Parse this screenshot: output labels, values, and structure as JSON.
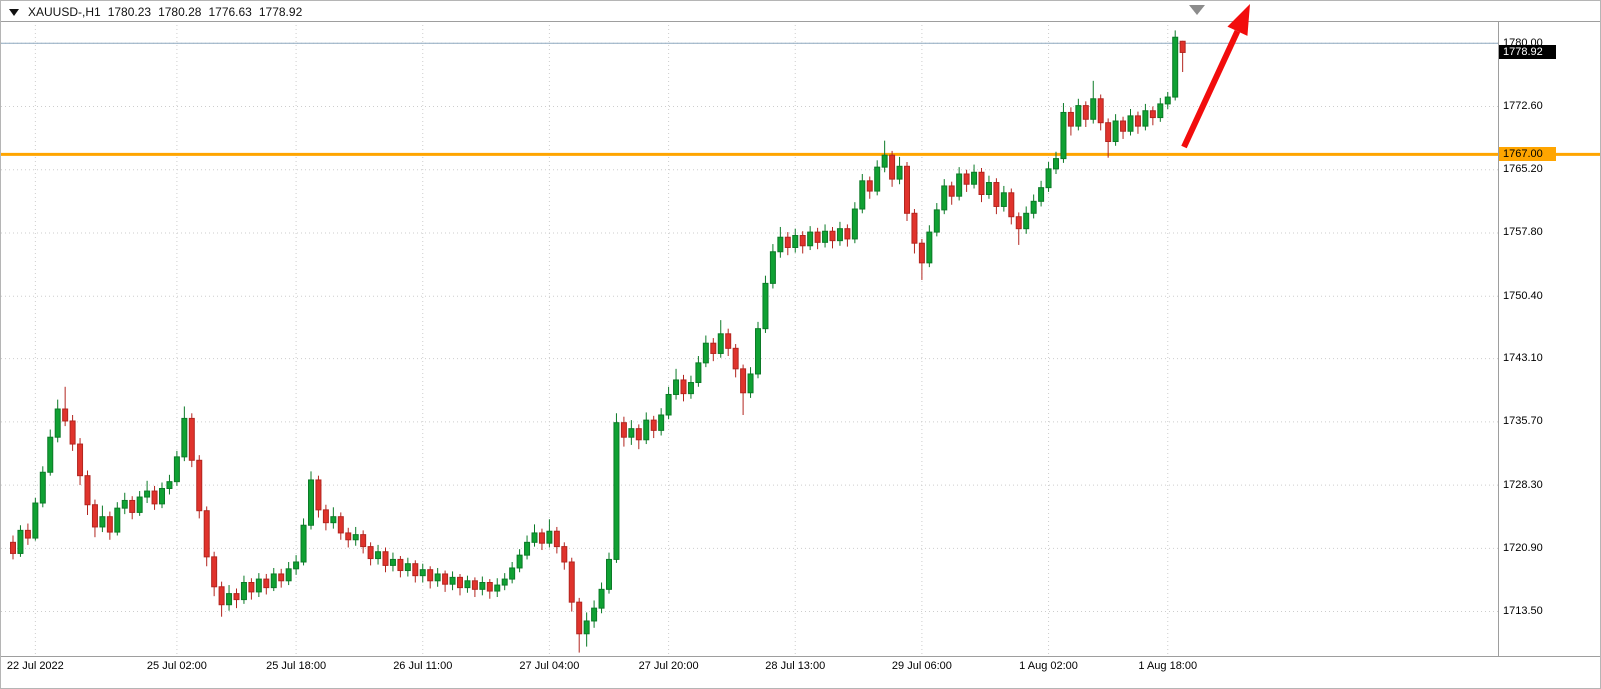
{
  "header": {
    "symbol": "XAUUSD-,H1",
    "open": "1780.23",
    "high": "1780.28",
    "low": "1776.63",
    "close": "1778.92"
  },
  "colors": {
    "candle_up_fill": "#0FA133",
    "candle_up_stroke": "#0B7A27",
    "candle_down_fill": "#E0332C",
    "candle_down_stroke": "#B2251F",
    "grid": "#CDCDCD",
    "frame": "#9E9E9E",
    "level_orange": "#FFA500",
    "level_blue": "#8DA8BF",
    "arrow_red": "#F20C0C",
    "marker_gray": "#8C8C8C"
  },
  "price_axis": {
    "badges": [
      {
        "label": "1778.92",
        "price": 1778.92,
        "bg": "#000000",
        "fg": "#FFFFFF"
      },
      {
        "label": "1767.00",
        "price": 1767.0,
        "bg": "#FFA500",
        "fg": "#000000"
      }
    ]
  },
  "chart_data": {
    "type": "candlestick",
    "symbol": "XAUUSD",
    "timeframe": "H1",
    "ylim": [
      1708.3,
      1782.6
    ],
    "grid": true,
    "y_ticks": [
      {
        "label": "1780.00",
        "value": 1780.0
      },
      {
        "label": "1772.60",
        "value": 1772.6
      },
      {
        "label": "1765.20",
        "value": 1765.2
      },
      {
        "label": "1757.80",
        "value": 1757.8
      },
      {
        "label": "1750.40",
        "value": 1750.4
      },
      {
        "label": "1743.10",
        "value": 1743.1
      },
      {
        "label": "1735.70",
        "value": 1735.7
      },
      {
        "label": "1728.30",
        "value": 1728.3
      },
      {
        "label": "1720.90",
        "value": 1720.9
      },
      {
        "label": "1713.50",
        "value": 1713.5
      }
    ],
    "x_labels": [
      {
        "index": 3,
        "text": "22 Jul 2022"
      },
      {
        "index": 22,
        "text": "25 Jul 02:00"
      },
      {
        "index": 38,
        "text": "25 Jul 18:00"
      },
      {
        "index": 55,
        "text": "26 Jul 11:00"
      },
      {
        "index": 72,
        "text": "27 Jul 04:00"
      },
      {
        "index": 88,
        "text": "27 Jul 20:00"
      },
      {
        "index": 105,
        "text": "28 Jul 13:00"
      },
      {
        "index": 122,
        "text": "29 Jul 06:00"
      },
      {
        "index": 139,
        "text": "1 Aug 02:00"
      },
      {
        "index": 155,
        "text": "1 Aug 18:00"
      }
    ],
    "levels": [
      {
        "name": "resistance-1780",
        "price": 1780.0,
        "color": "#8DA8BF",
        "width": 1,
        "to_edge": false
      },
      {
        "name": "support-1767",
        "price": 1767.0,
        "color": "#FFA500",
        "width": 3,
        "to_edge": true
      }
    ],
    "annotations": [
      {
        "type": "arrow",
        "from": [
          1183,
          146
        ],
        "to": [
          1249,
          3
        ],
        "color": "#F20C0C",
        "width": 6,
        "head_len": 30,
        "head_w": 22
      },
      {
        "type": "triangle-down",
        "points": [
          [
            1188,
            4
          ],
          [
            1204,
            4
          ],
          [
            1196,
            14
          ]
        ],
        "color": "#8C8C8C"
      }
    ],
    "candle_columns": [
      "open",
      "high",
      "low",
      "close"
    ],
    "candles": [
      [
        1721.6,
        1722.4,
        1719.6,
        1720.3
      ],
      [
        1720.3,
        1723.6,
        1719.9,
        1723.0
      ],
      [
        1723.0,
        1723.8,
        1721.3,
        1722.1
      ],
      [
        1722.1,
        1726.8,
        1721.8,
        1726.2
      ],
      [
        1726.2,
        1730.5,
        1725.7,
        1729.8
      ],
      [
        1729.8,
        1734.8,
        1729.4,
        1733.9
      ],
      [
        1733.9,
        1738.3,
        1733.3,
        1737.2
      ],
      [
        1737.2,
        1739.8,
        1735.2,
        1735.8
      ],
      [
        1735.8,
        1736.5,
        1732.3,
        1733.1
      ],
      [
        1733.1,
        1733.8,
        1728.3,
        1729.4
      ],
      [
        1729.4,
        1730.0,
        1724.8,
        1726.0
      ],
      [
        1726.0,
        1726.6,
        1722.2,
        1723.4
      ],
      [
        1723.4,
        1725.9,
        1722.8,
        1724.6
      ],
      [
        1724.6,
        1725.2,
        1721.9,
        1722.8
      ],
      [
        1722.8,
        1726.3,
        1722.4,
        1725.6
      ],
      [
        1725.6,
        1727.4,
        1724.9,
        1726.5
      ],
      [
        1726.5,
        1727.0,
        1724.3,
        1725.1
      ],
      [
        1725.1,
        1727.6,
        1724.7,
        1726.9
      ],
      [
        1726.9,
        1728.8,
        1726.2,
        1727.6
      ],
      [
        1727.6,
        1728.2,
        1725.4,
        1726.1
      ],
      [
        1726.1,
        1728.6,
        1725.6,
        1727.9
      ],
      [
        1727.9,
        1729.5,
        1727.2,
        1728.7
      ],
      [
        1728.7,
        1732.3,
        1728.2,
        1731.6
      ],
      [
        1731.6,
        1737.5,
        1731.1,
        1736.1
      ],
      [
        1736.1,
        1736.7,
        1730.4,
        1731.2
      ],
      [
        1731.2,
        1731.8,
        1724.4,
        1725.3
      ],
      [
        1725.3,
        1725.8,
        1718.8,
        1719.9
      ],
      [
        1719.9,
        1720.5,
        1715.3,
        1716.4
      ],
      [
        1716.4,
        1717.0,
        1712.9,
        1714.3
      ],
      [
        1714.3,
        1716.6,
        1713.6,
        1715.6
      ],
      [
        1715.6,
        1716.2,
        1713.9,
        1714.9
      ],
      [
        1714.9,
        1717.7,
        1714.4,
        1716.9
      ],
      [
        1716.9,
        1717.4,
        1714.9,
        1715.8
      ],
      [
        1715.8,
        1718.0,
        1715.2,
        1717.3
      ],
      [
        1717.3,
        1717.9,
        1715.5,
        1716.3
      ],
      [
        1716.3,
        1718.6,
        1715.9,
        1717.9
      ],
      [
        1717.9,
        1718.5,
        1716.3,
        1717.1
      ],
      [
        1717.1,
        1719.3,
        1716.6,
        1718.5
      ],
      [
        1718.5,
        1720.1,
        1717.8,
        1719.3
      ],
      [
        1719.3,
        1724.4,
        1718.9,
        1723.6
      ],
      [
        1723.6,
        1729.9,
        1723.1,
        1728.9
      ],
      [
        1728.9,
        1729.4,
        1724.5,
        1725.4
      ],
      [
        1725.4,
        1726.0,
        1723.0,
        1723.9
      ],
      [
        1723.9,
        1725.7,
        1723.2,
        1724.6
      ],
      [
        1724.6,
        1725.1,
        1721.9,
        1722.7
      ],
      [
        1722.7,
        1723.3,
        1721.0,
        1721.9
      ],
      [
        1721.9,
        1723.4,
        1721.2,
        1722.5
      ],
      [
        1722.5,
        1723.0,
        1720.3,
        1721.1
      ],
      [
        1721.1,
        1721.6,
        1718.9,
        1719.7
      ],
      [
        1719.7,
        1721.3,
        1719.0,
        1720.5
      ],
      [
        1720.5,
        1721.0,
        1718.1,
        1718.9
      ],
      [
        1718.9,
        1720.4,
        1718.2,
        1719.6
      ],
      [
        1719.6,
        1720.0,
        1717.5,
        1718.3
      ],
      [
        1718.3,
        1719.8,
        1717.6,
        1719.1
      ],
      [
        1719.1,
        1719.5,
        1716.9,
        1717.7
      ],
      [
        1717.7,
        1719.1,
        1716.9,
        1718.4
      ],
      [
        1718.4,
        1718.8,
        1716.2,
        1717.1
      ],
      [
        1717.1,
        1718.6,
        1716.4,
        1717.9
      ],
      [
        1717.9,
        1718.3,
        1715.8,
        1716.7
      ],
      [
        1716.7,
        1718.2,
        1716.0,
        1717.5
      ],
      [
        1717.5,
        1717.9,
        1715.4,
        1716.3
      ],
      [
        1716.3,
        1717.7,
        1715.7,
        1717.1
      ],
      [
        1717.1,
        1717.5,
        1715.2,
        1716.1
      ],
      [
        1716.1,
        1717.6,
        1715.4,
        1716.9
      ],
      [
        1716.9,
        1717.3,
        1715.0,
        1715.9
      ],
      [
        1715.9,
        1717.4,
        1715.2,
        1716.6
      ],
      [
        1716.6,
        1718.0,
        1716.0,
        1717.3
      ],
      [
        1717.3,
        1719.3,
        1716.8,
        1718.6
      ],
      [
        1718.6,
        1720.8,
        1718.1,
        1720.1
      ],
      [
        1720.1,
        1722.4,
        1719.6,
        1721.6
      ],
      [
        1721.6,
        1723.7,
        1721.1,
        1722.7
      ],
      [
        1722.7,
        1723.2,
        1720.7,
        1721.5
      ],
      [
        1721.5,
        1724.3,
        1721.0,
        1722.9
      ],
      [
        1722.9,
        1723.4,
        1720.3,
        1721.1
      ],
      [
        1721.1,
        1721.6,
        1718.4,
        1719.3
      ],
      [
        1719.3,
        1719.8,
        1713.5,
        1714.6
      ],
      [
        1714.6,
        1715.1,
        1708.7,
        1710.9
      ],
      [
        1710.9,
        1713.4,
        1709.4,
        1712.4
      ],
      [
        1712.4,
        1714.8,
        1711.6,
        1713.9
      ],
      [
        1713.9,
        1716.9,
        1713.3,
        1716.1
      ],
      [
        1716.1,
        1720.4,
        1715.6,
        1719.6
      ],
      [
        1719.6,
        1736.7,
        1719.2,
        1735.6
      ],
      [
        1735.6,
        1736.3,
        1732.8,
        1733.9
      ],
      [
        1733.9,
        1735.9,
        1733.0,
        1734.9
      ],
      [
        1734.9,
        1735.4,
        1732.5,
        1733.6
      ],
      [
        1733.6,
        1736.8,
        1733.1,
        1735.9
      ],
      [
        1735.9,
        1736.4,
        1733.8,
        1734.7
      ],
      [
        1734.7,
        1737.3,
        1734.1,
        1736.5
      ],
      [
        1736.5,
        1739.8,
        1736.0,
        1738.9
      ],
      [
        1738.9,
        1741.9,
        1738.3,
        1740.6
      ],
      [
        1740.6,
        1741.2,
        1738.1,
        1739.0
      ],
      [
        1739.0,
        1741.1,
        1738.4,
        1740.3
      ],
      [
        1740.3,
        1743.4,
        1739.8,
        1742.6
      ],
      [
        1742.6,
        1745.8,
        1742.1,
        1744.9
      ],
      [
        1744.9,
        1745.5,
        1742.8,
        1743.7
      ],
      [
        1743.7,
        1747.6,
        1743.2,
        1746.0
      ],
      [
        1746.0,
        1746.6,
        1743.4,
        1744.3
      ],
      [
        1744.3,
        1744.8,
        1740.9,
        1741.9
      ],
      [
        1741.9,
        1742.4,
        1736.5,
        1739.1
      ],
      [
        1739.1,
        1742.1,
        1738.5,
        1741.3
      ],
      [
        1741.3,
        1747.4,
        1740.8,
        1746.6
      ],
      [
        1746.6,
        1752.8,
        1746.1,
        1751.9
      ],
      [
        1751.9,
        1756.5,
        1751.3,
        1755.6
      ],
      [
        1755.6,
        1758.5,
        1754.9,
        1757.3
      ],
      [
        1757.3,
        1757.9,
        1755.2,
        1756.1
      ],
      [
        1756.1,
        1758.3,
        1755.5,
        1757.5
      ],
      [
        1757.5,
        1758.0,
        1755.4,
        1756.3
      ],
      [
        1756.3,
        1758.6,
        1755.8,
        1757.9
      ],
      [
        1757.9,
        1758.4,
        1755.9,
        1756.7
      ],
      [
        1756.7,
        1758.8,
        1756.1,
        1758.0
      ],
      [
        1758.0,
        1758.5,
        1756.0,
        1756.9
      ],
      [
        1756.9,
        1759.1,
        1756.3,
        1758.3
      ],
      [
        1758.3,
        1758.8,
        1756.2,
        1757.1
      ],
      [
        1757.1,
        1761.4,
        1756.6,
        1760.6
      ],
      [
        1760.6,
        1764.7,
        1760.1,
        1763.9
      ],
      [
        1763.9,
        1764.4,
        1761.8,
        1762.7
      ],
      [
        1762.7,
        1766.3,
        1762.2,
        1765.5
      ],
      [
        1765.5,
        1768.6,
        1764.9,
        1766.9
      ],
      [
        1766.9,
        1767.4,
        1763.2,
        1764.1
      ],
      [
        1764.1,
        1766.7,
        1763.5,
        1765.6
      ],
      [
        1765.6,
        1766.1,
        1759.2,
        1760.1
      ],
      [
        1760.1,
        1760.6,
        1755.4,
        1756.6
      ],
      [
        1756.6,
        1757.1,
        1752.3,
        1754.3
      ],
      [
        1754.3,
        1758.7,
        1753.8,
        1757.9
      ],
      [
        1757.9,
        1761.3,
        1757.4,
        1760.5
      ],
      [
        1760.5,
        1764.1,
        1760.0,
        1763.3
      ],
      [
        1763.3,
        1763.8,
        1761.1,
        1762.1
      ],
      [
        1762.1,
        1765.5,
        1761.6,
        1764.7
      ],
      [
        1764.7,
        1765.2,
        1762.6,
        1763.5
      ],
      [
        1763.5,
        1765.8,
        1763.0,
        1764.9
      ],
      [
        1764.9,
        1765.4,
        1761.4,
        1762.3
      ],
      [
        1762.3,
        1764.5,
        1761.8,
        1763.7
      ],
      [
        1763.7,
        1764.2,
        1760.0,
        1760.9
      ],
      [
        1760.9,
        1763.3,
        1760.3,
        1762.5
      ],
      [
        1762.5,
        1763.0,
        1758.8,
        1759.7
      ],
      [
        1759.7,
        1760.2,
        1756.4,
        1758.3
      ],
      [
        1758.3,
        1760.9,
        1757.7,
        1760.1
      ],
      [
        1760.1,
        1762.3,
        1759.5,
        1761.5
      ],
      [
        1761.5,
        1763.9,
        1760.9,
        1763.1
      ],
      [
        1763.1,
        1766.1,
        1762.6,
        1765.3
      ],
      [
        1765.3,
        1767.3,
        1764.7,
        1766.5
      ],
      [
        1766.5,
        1773.0,
        1766.0,
        1771.9
      ],
      [
        1771.9,
        1772.5,
        1769.2,
        1770.3
      ],
      [
        1770.3,
        1773.5,
        1769.8,
        1772.7
      ],
      [
        1772.7,
        1773.2,
        1770.2,
        1771.1
      ],
      [
        1771.1,
        1775.6,
        1770.6,
        1773.5
      ],
      [
        1773.5,
        1774.0,
        1769.8,
        1770.7
      ],
      [
        1770.7,
        1771.2,
        1766.6,
        1768.5
      ],
      [
        1768.5,
        1771.7,
        1768.0,
        1770.9
      ],
      [
        1770.9,
        1771.4,
        1768.8,
        1769.7
      ],
      [
        1769.7,
        1772.3,
        1769.2,
        1771.5
      ],
      [
        1771.5,
        1772.0,
        1769.4,
        1770.3
      ],
      [
        1770.3,
        1772.9,
        1769.8,
        1772.1
      ],
      [
        1772.1,
        1772.6,
        1770.4,
        1771.3
      ],
      [
        1771.3,
        1773.6,
        1770.8,
        1772.9
      ],
      [
        1772.9,
        1774.3,
        1772.3,
        1773.7
      ],
      [
        1773.7,
        1781.5,
        1773.3,
        1780.7
      ],
      [
        1780.23,
        1780.28,
        1776.63,
        1778.92
      ]
    ]
  }
}
